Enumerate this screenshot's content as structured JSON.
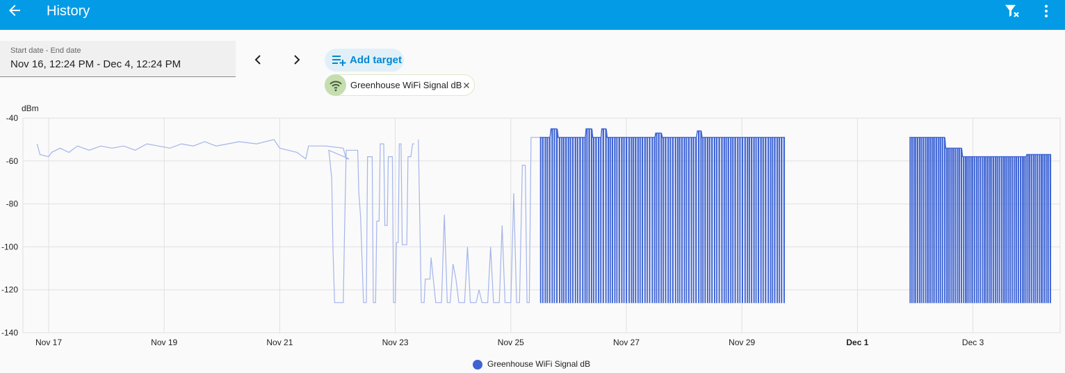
{
  "header": {
    "title": "History",
    "back_icon": "arrow-left-icon",
    "filter_icon": "filter-remove-icon",
    "menu_icon": "dots-vertical-icon"
  },
  "date_range": {
    "label": "Start date - End date",
    "value": "Nov 16, 12:24 PM - Dec 4, 12:24 PM"
  },
  "nav": {
    "prev_icon": "chevron-left-icon",
    "next_icon": "chevron-right-icon"
  },
  "add_target": {
    "label": "Add target",
    "icon": "playlist-plus-icon"
  },
  "target_chip": {
    "label": "Greenhouse WiFi Signal dB",
    "icon": "wifi-icon",
    "remove_icon": "close-icon"
  },
  "colors": {
    "header": "#039be5",
    "series": "#3e64d4",
    "series_faded": "#a3b4ea"
  },
  "chart_data": {
    "type": "line",
    "ylabel": "dBm",
    "ylim": [
      -140,
      -40
    ],
    "yticks": [
      -40,
      -60,
      -80,
      -100,
      -120,
      -140
    ],
    "xlim": [
      16.78,
      34.78
    ],
    "xticks": [
      {
        "value": 17,
        "label": "Nov 17",
        "bold": false
      },
      {
        "value": 19,
        "label": "Nov 19",
        "bold": false
      },
      {
        "value": 21,
        "label": "Nov 21",
        "bold": false
      },
      {
        "value": 23,
        "label": "Nov 23",
        "bold": false
      },
      {
        "value": 25,
        "label": "Nov 25",
        "bold": false
      },
      {
        "value": 27,
        "label": "Nov 27",
        "bold": false
      },
      {
        "value": 29,
        "label": "Nov 29",
        "bold": false
      },
      {
        "value": 31,
        "label": "Dec 1",
        "bold": true
      },
      {
        "value": 33,
        "label": "Dec 3",
        "bold": false
      }
    ],
    "grid": true,
    "legend": "bottom-center",
    "series": [
      {
        "name": "Greenhouse WiFi Signal dB",
        "x_unit": "day of November (Dec 1 = 31)",
        "segments": [
          {
            "style": "faded",
            "points": [
              [
                16.8,
                -52
              ],
              [
                16.85,
                -57
              ],
              [
                17.0,
                -58
              ],
              [
                17.05,
                -56
              ],
              [
                17.2,
                -54
              ],
              [
                17.35,
                -56
              ],
              [
                17.5,
                -53
              ],
              [
                17.7,
                -55
              ],
              [
                17.9,
                -53
              ],
              [
                18.1,
                -54
              ],
              [
                18.3,
                -53
              ],
              [
                18.5,
                -55
              ],
              [
                18.7,
                -52
              ],
              [
                18.9,
                -53
              ],
              [
                19.1,
                -54
              ],
              [
                19.3,
                -52
              ],
              [
                19.5,
                -53
              ],
              [
                19.7,
                -51
              ],
              [
                19.9,
                -53
              ],
              [
                20.1,
                -52
              ],
              [
                20.3,
                -51
              ],
              [
                20.6,
                -52
              ],
              [
                20.9,
                -50
              ],
              [
                21.0,
                -54
              ],
              [
                21.3,
                -56
              ],
              [
                21.45,
                -59
              ],
              [
                21.5,
                -53
              ],
              [
                21.8,
                -53
              ],
              [
                22.1,
                -54
              ],
              [
                22.15,
                -59
              ],
              [
                22.2,
                -59
              ],
              [
                21.85,
                -55
              ],
              [
                21.9,
                -68
              ],
              [
                21.92,
                -100
              ],
              [
                21.95,
                -126
              ],
              [
                22.1,
                -126
              ],
              [
                22.12,
                -95
              ],
              [
                22.15,
                -55
              ],
              [
                22.35,
                -55
              ],
              [
                22.37,
                -75
              ],
              [
                22.4,
                -86
              ],
              [
                22.45,
                -126
              ],
              [
                22.5,
                -126
              ],
              [
                22.52,
                -58
              ],
              [
                22.6,
                -58
              ],
              [
                22.62,
                -126
              ],
              [
                22.66,
                -126
              ],
              [
                22.68,
                -88
              ],
              [
                22.72,
                -88
              ],
              [
                22.74,
                -52
              ],
              [
                22.8,
                -52
              ],
              [
                22.82,
                -90
              ],
              [
                22.86,
                -90
              ],
              [
                22.88,
                -58
              ],
              [
                22.95,
                -58
              ],
              [
                22.97,
                -126
              ],
              [
                23.0,
                -126
              ],
              [
                23.02,
                -98
              ],
              [
                23.05,
                -98
              ],
              [
                23.07,
                -52
              ],
              [
                23.1,
                -52
              ],
              [
                23.12,
                -99
              ],
              [
                23.2,
                -99
              ],
              [
                23.22,
                -58
              ],
              [
                23.27,
                -58
              ],
              [
                23.3,
                -52
              ],
              [
                23.33,
                -52
              ]
            ]
          },
          {
            "style": "faded",
            "points": [
              [
                23.4,
                -50
              ],
              [
                23.45,
                -126
              ],
              [
                23.5,
                -126
              ],
              [
                23.52,
                -115
              ],
              [
                23.6,
                -115
              ],
              [
                23.62,
                -105
              ],
              [
                23.7,
                -126
              ],
              [
                23.8,
                -126
              ],
              [
                23.85,
                -85
              ],
              [
                23.9,
                -126
              ],
              [
                23.95,
                -126
              ],
              [
                24.0,
                -108
              ],
              [
                24.05,
                -115
              ],
              [
                24.1,
                -126
              ],
              [
                24.2,
                -126
              ],
              [
                24.25,
                -100
              ],
              [
                24.3,
                -126
              ],
              [
                24.4,
                -126
              ],
              [
                24.45,
                -120
              ],
              [
                24.5,
                -126
              ],
              [
                24.6,
                -126
              ],
              [
                24.65,
                -100
              ],
              [
                24.7,
                -126
              ],
              [
                24.8,
                -126
              ],
              [
                24.85,
                -90
              ],
              [
                24.9,
                -126
              ],
              [
                25.0,
                -126
              ],
              [
                25.05,
                -75
              ],
              [
                25.1,
                -126
              ],
              [
                25.15,
                -126
              ],
              [
                25.2,
                -62
              ],
              [
                25.25,
                -62
              ],
              [
                25.28,
                -126
              ],
              [
                25.32,
                -126
              ],
              [
                25.35,
                -49
              ],
              [
                25.55,
                -49
              ]
            ]
          },
          {
            "style": "solid",
            "range": [
              25.5,
              29.72
            ],
            "high": -49,
            "low": -126,
            "period": 0.055,
            "extra_highs": [
              [
                25.75,
                -45
              ],
              [
                26.35,
                -45
              ],
              [
                26.6,
                -45
              ],
              [
                27.55,
                -47
              ],
              [
                28.25,
                -46
              ]
            ]
          },
          {
            "style": "solid",
            "range": [
              31.9,
              34.35
            ],
            "high": -49,
            "low": -126,
            "period": 0.045,
            "step_down": [
              [
                32.5,
                -54
              ],
              [
                32.8,
                -58
              ],
              [
                33.9,
                -57
              ]
            ]
          }
        ]
      }
    ]
  }
}
